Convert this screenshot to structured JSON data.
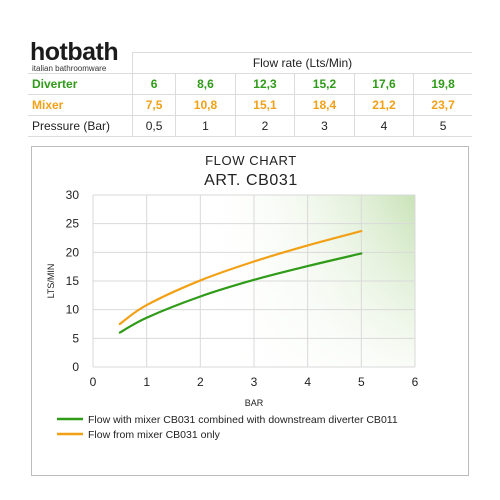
{
  "brand": {
    "name": "hotbath",
    "tagline": "italian bathroomware"
  },
  "table": {
    "header": "Flow rate (Lts/Min)",
    "rows": [
      {
        "label": "Diverter",
        "values": [
          "6",
          "8,6",
          "12,3",
          "15,2",
          "17,6",
          "19,8"
        ]
      },
      {
        "label": "Mixer",
        "values": [
          "7,5",
          "10,8",
          "15,1",
          "18,4",
          "21,2",
          "23,7"
        ]
      },
      {
        "label": "Pressure (Bar)",
        "values": [
          "0,5",
          "1",
          "2",
          "3",
          "4",
          "5"
        ]
      }
    ]
  },
  "chart": {
    "title_line1": "FLOW CHART",
    "title_line2": "ART. CB031"
  },
  "colors": {
    "diverter": "#2f9b18",
    "mixer": "#f2a016",
    "grid": "#d9d9d9",
    "shade": "#c9e3b8"
  },
  "chart_data": {
    "type": "line",
    "title": "FLOW CHART ART. CB031",
    "xlabel": "BAR",
    "ylabel": "LTS/MIN",
    "xlim": [
      0,
      6
    ],
    "ylim": [
      0,
      30
    ],
    "xticks": [
      "0",
      "1",
      "2",
      "3",
      "4",
      "5",
      "6"
    ],
    "yticks": [
      "0",
      "5",
      "10",
      "15",
      "20",
      "25",
      "30"
    ],
    "x": [
      0.5,
      1,
      2,
      3,
      4,
      5
    ],
    "series": [
      {
        "name": "Flow with mixer CB031 combined with downstream diverter CB011",
        "values": [
          6,
          8.6,
          12.3,
          15.2,
          17.6,
          19.8
        ],
        "color": "#2f9b18"
      },
      {
        "name": "Flow from mixer CB031 only",
        "values": [
          7.5,
          10.8,
          15.1,
          18.4,
          21.2,
          23.7
        ],
        "color": "#f2a016"
      }
    ],
    "grid": true,
    "legend": "bottom"
  }
}
